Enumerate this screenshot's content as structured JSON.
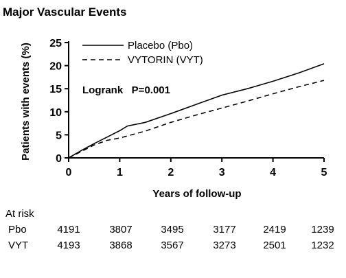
{
  "chart_data": {
    "type": "line",
    "title": "Major Vascular Events",
    "xlabel": "Years of follow-up",
    "ylabel": "Patients with events (%)",
    "xlim": [
      0,
      5
    ],
    "ylim": [
      0,
      25
    ],
    "xticks": [
      0,
      1,
      2,
      3,
      4,
      5
    ],
    "yticks": [
      0,
      5,
      10,
      15,
      20,
      25
    ],
    "grid": false,
    "legend_position": "top-left",
    "annotation": "Logrank   P=0.001",
    "series": [
      {
        "name": "Placebo (Pbo)",
        "line_style": "solid",
        "color": "#000000",
        "x": [
          0,
          0.25,
          0.5,
          0.75,
          1.0,
          1.15,
          1.5,
          2.0,
          2.5,
          3.0,
          3.5,
          4.0,
          4.5,
          5.0
        ],
        "y": [
          0,
          1.6,
          3.1,
          4.5,
          5.9,
          6.9,
          7.7,
          9.6,
          11.6,
          13.6,
          15.0,
          16.6,
          18.4,
          20.4
        ]
      },
      {
        "name": "VYTORIN (VYT)",
        "line_style": "dashed",
        "color": "#000000",
        "x": [
          0,
          0.25,
          0.5,
          0.75,
          1.0,
          1.5,
          2.0,
          2.5,
          3.0,
          3.5,
          4.0,
          4.5,
          5.0
        ],
        "y": [
          0,
          1.4,
          2.8,
          3.8,
          4.3,
          5.8,
          7.7,
          9.3,
          10.8,
          12.3,
          13.9,
          15.4,
          16.8
        ]
      }
    ],
    "at_risk": {
      "label": "At risk",
      "rows": [
        {
          "name": "Pbo",
          "values": [
            "4191",
            "3807",
            "3495",
            "3177",
            "2419",
            "1239"
          ]
        },
        {
          "name": "VYT",
          "values": [
            "4193",
            "3868",
            "3567",
            "3273",
            "2501",
            "1232"
          ]
        }
      ]
    }
  }
}
